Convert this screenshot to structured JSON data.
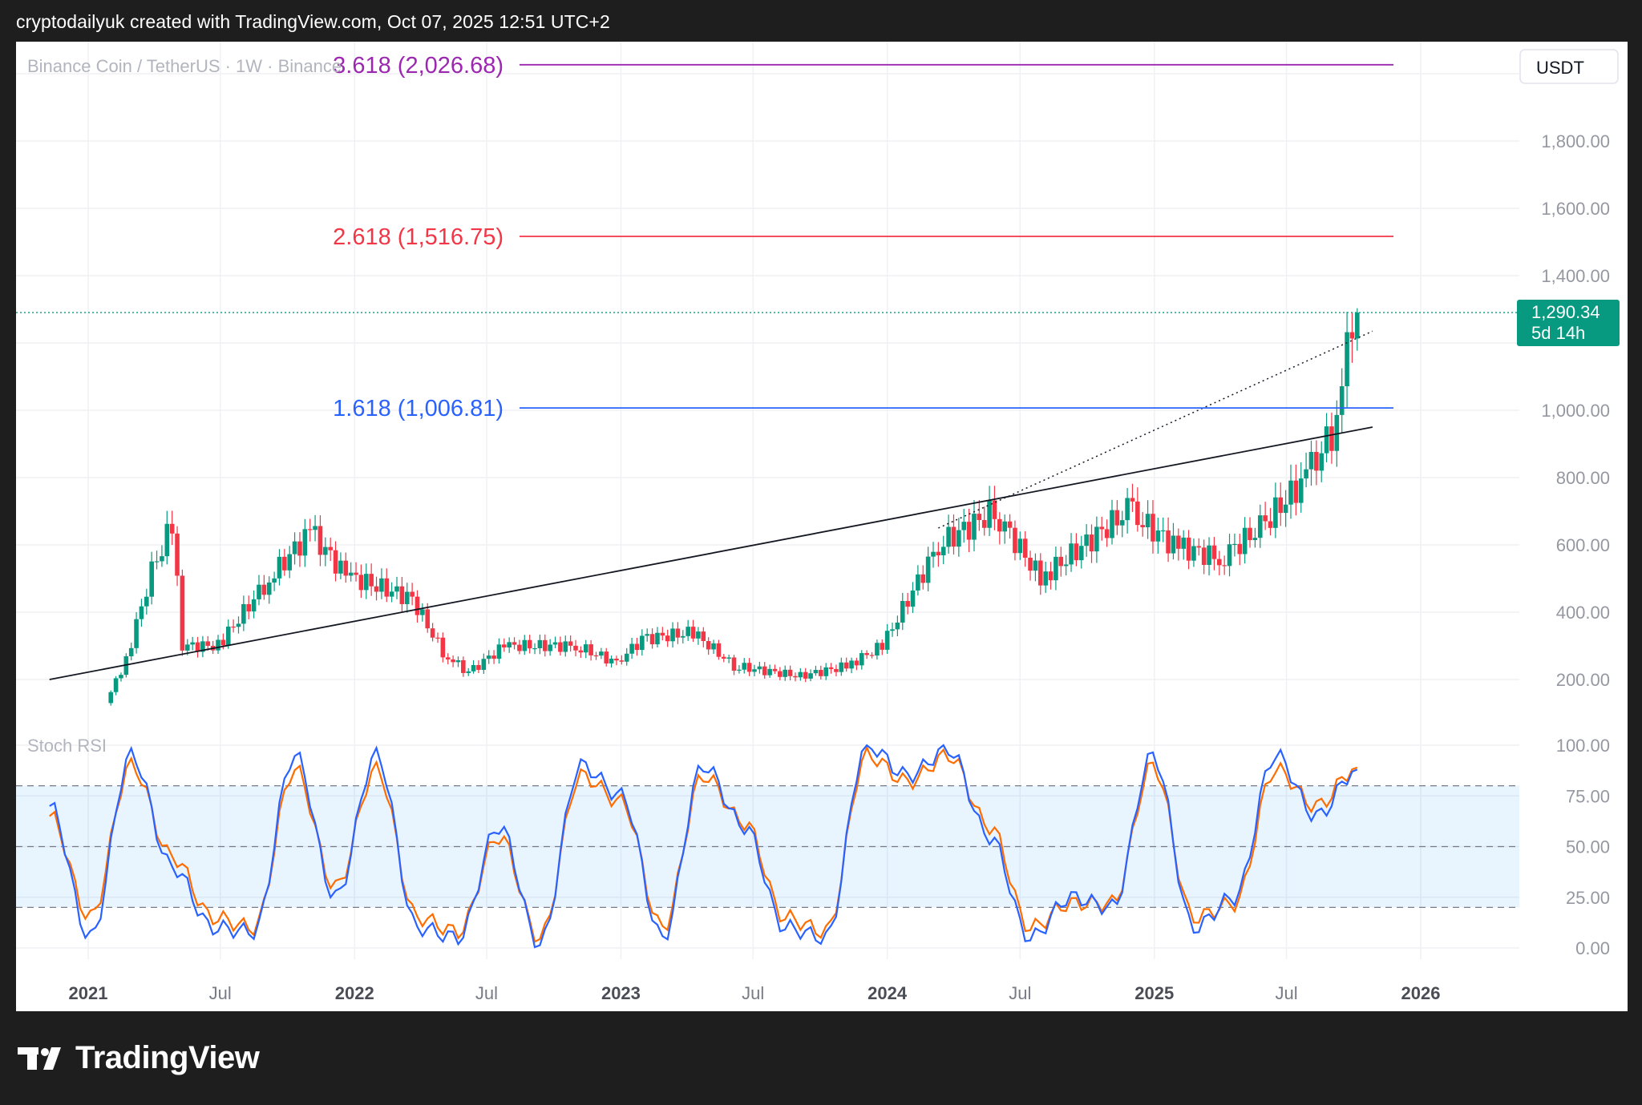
{
  "header": {
    "text": "cryptodailyuk created with TradingView.com, Oct 07, 2025 12:51 UTC+2"
  },
  "footer": {
    "brand": "TradingView",
    "logo_icon": "tradingview-logo-icon"
  },
  "colors": {
    "up": "#089981",
    "down": "#f23645",
    "fib_3618": "#9c27b0",
    "fib_2618": "#f23645",
    "fib_1618": "#2962ff",
    "stoch_k": "#2962ff",
    "stoch_d": "#ff6d00",
    "band": "#2196f3",
    "badge": "#089981"
  },
  "chart_data": [
    {
      "type": "candlestick",
      "symbol_label": "Binance Coin / TetherUS · 1W · Binance",
      "currency_label": "USDT",
      "ylim": [
        80,
        2120
      ],
      "y_ticks": [
        200,
        400,
        600,
        800,
        1000,
        1400,
        1600,
        1800
      ],
      "y_tick_labels": [
        "200.00",
        "400.00",
        "600.00",
        "800.00",
        "1,000.00",
        "1,400.00",
        "1,600.00",
        "1,800.00"
      ],
      "last_price": 1290.34,
      "last_price_label": "1,290.34",
      "countdown_label": "5d 14h",
      "x_labels": [
        "2021",
        "Jul",
        "2022",
        "Jul",
        "2023",
        "Jul",
        "2024",
        "Jul",
        "2025",
        "Jul",
        "2026"
      ],
      "fib_levels": [
        {
          "label": "3.618 (2,026.68)",
          "value": 2026.68
        },
        {
          "label": "2.618 (1,516.75)",
          "value": 1516.75
        },
        {
          "label": "1.618 (1,006.81)",
          "value": 1006.81
        }
      ],
      "trendlines": [
        {
          "name": "support",
          "x": [
            "2020-11-09",
            "2025-10-27"
          ],
          "y": [
            200,
            950
          ]
        },
        {
          "name": "dotted-projection",
          "x": [
            "2024-03-11",
            "2025-10-27"
          ],
          "y": [
            650,
            1235
          ]
        }
      ],
      "candles": [
        {
          "week": "2021-02-01",
          "close": 130
        },
        {
          "week": "2021-03-01",
          "close": 260
        },
        {
          "week": "2021-04-05",
          "close": 520
        },
        {
          "week": "2021-05-03",
          "close": 660
        },
        {
          "week": "2021-05-17",
          "close": 300
        },
        {
          "week": "2021-07-05",
          "close": 300
        },
        {
          "week": "2021-09-06",
          "close": 480
        },
        {
          "week": "2021-11-08",
          "close": 640
        },
        {
          "week": "2021-12-27",
          "close": 510
        },
        {
          "week": "2022-03-28",
          "close": 440
        },
        {
          "week": "2022-05-09",
          "close": 280
        },
        {
          "week": "2022-06-13",
          "close": 220
        },
        {
          "week": "2022-08-01",
          "close": 300
        },
        {
          "week": "2022-11-07",
          "close": 300
        },
        {
          "week": "2023-01-02",
          "close": 250
        },
        {
          "week": "2023-02-06",
          "close": 320
        },
        {
          "week": "2023-04-17",
          "close": 340
        },
        {
          "week": "2023-06-12",
          "close": 240
        },
        {
          "week": "2023-09-11",
          "close": 210
        },
        {
          "week": "2023-11-13",
          "close": 240
        },
        {
          "week": "2024-01-01",
          "close": 300
        },
        {
          "week": "2024-03-18",
          "close": 600
        },
        {
          "week": "2024-06-03",
          "close": 700
        },
        {
          "week": "2024-08-05",
          "close": 500
        },
        {
          "week": "2024-12-02",
          "close": 700
        },
        {
          "week": "2025-02-03",
          "close": 600
        },
        {
          "week": "2025-04-07",
          "close": 560
        },
        {
          "week": "2025-06-02",
          "close": 650
        },
        {
          "week": "2025-08-04",
          "close": 800
        },
        {
          "week": "2025-09-15",
          "close": 960
        },
        {
          "week": "2025-10-06",
          "close": 1290.34
        }
      ]
    },
    {
      "type": "line",
      "title": "Stoch RSI",
      "ylim": [
        0,
        100
      ],
      "y_ticks": [
        0,
        25,
        50,
        75,
        100
      ],
      "y_tick_labels": [
        "0.00",
        "25.00",
        "50.00",
        "75.00",
        "100.00"
      ],
      "bands": [
        20,
        50,
        80
      ],
      "x": [
        "2020-11-09",
        "2021-01-04",
        "2021-03-01",
        "2021-04-26",
        "2021-06-21",
        "2021-08-16",
        "2021-10-11",
        "2021-12-06",
        "2022-01-31",
        "2022-03-28",
        "2022-05-23",
        "2022-07-18",
        "2022-09-12",
        "2022-11-07",
        "2023-01-02",
        "2023-02-27",
        "2023-04-24",
        "2023-06-19",
        "2023-08-14",
        "2023-10-09",
        "2023-12-04",
        "2024-01-29",
        "2024-03-25",
        "2024-05-20",
        "2024-07-15",
        "2024-09-09",
        "2024-11-04",
        "2024-12-30",
        "2025-02-24",
        "2025-04-21",
        "2025-06-16",
        "2025-08-11",
        "2025-10-06"
      ],
      "series": [
        {
          "name": "K",
          "values": [
            70,
            5,
            95,
            40,
            10,
            8,
            95,
            25,
            95,
            10,
            5,
            60,
            2,
            90,
            75,
            5,
            90,
            60,
            10,
            5,
            100,
            85,
            98,
            55,
            5,
            25,
            20,
            95,
            10,
            25,
            95,
            65,
            88
          ]
        },
        {
          "name": "D",
          "values": [
            65,
            15,
            90,
            45,
            15,
            10,
            88,
            30,
            88,
            15,
            8,
            55,
            5,
            85,
            72,
            10,
            85,
            62,
            15,
            8,
            95,
            82,
            95,
            60,
            10,
            22,
            22,
            90,
            15,
            22,
            88,
            70,
            89
          ]
        }
      ]
    }
  ]
}
